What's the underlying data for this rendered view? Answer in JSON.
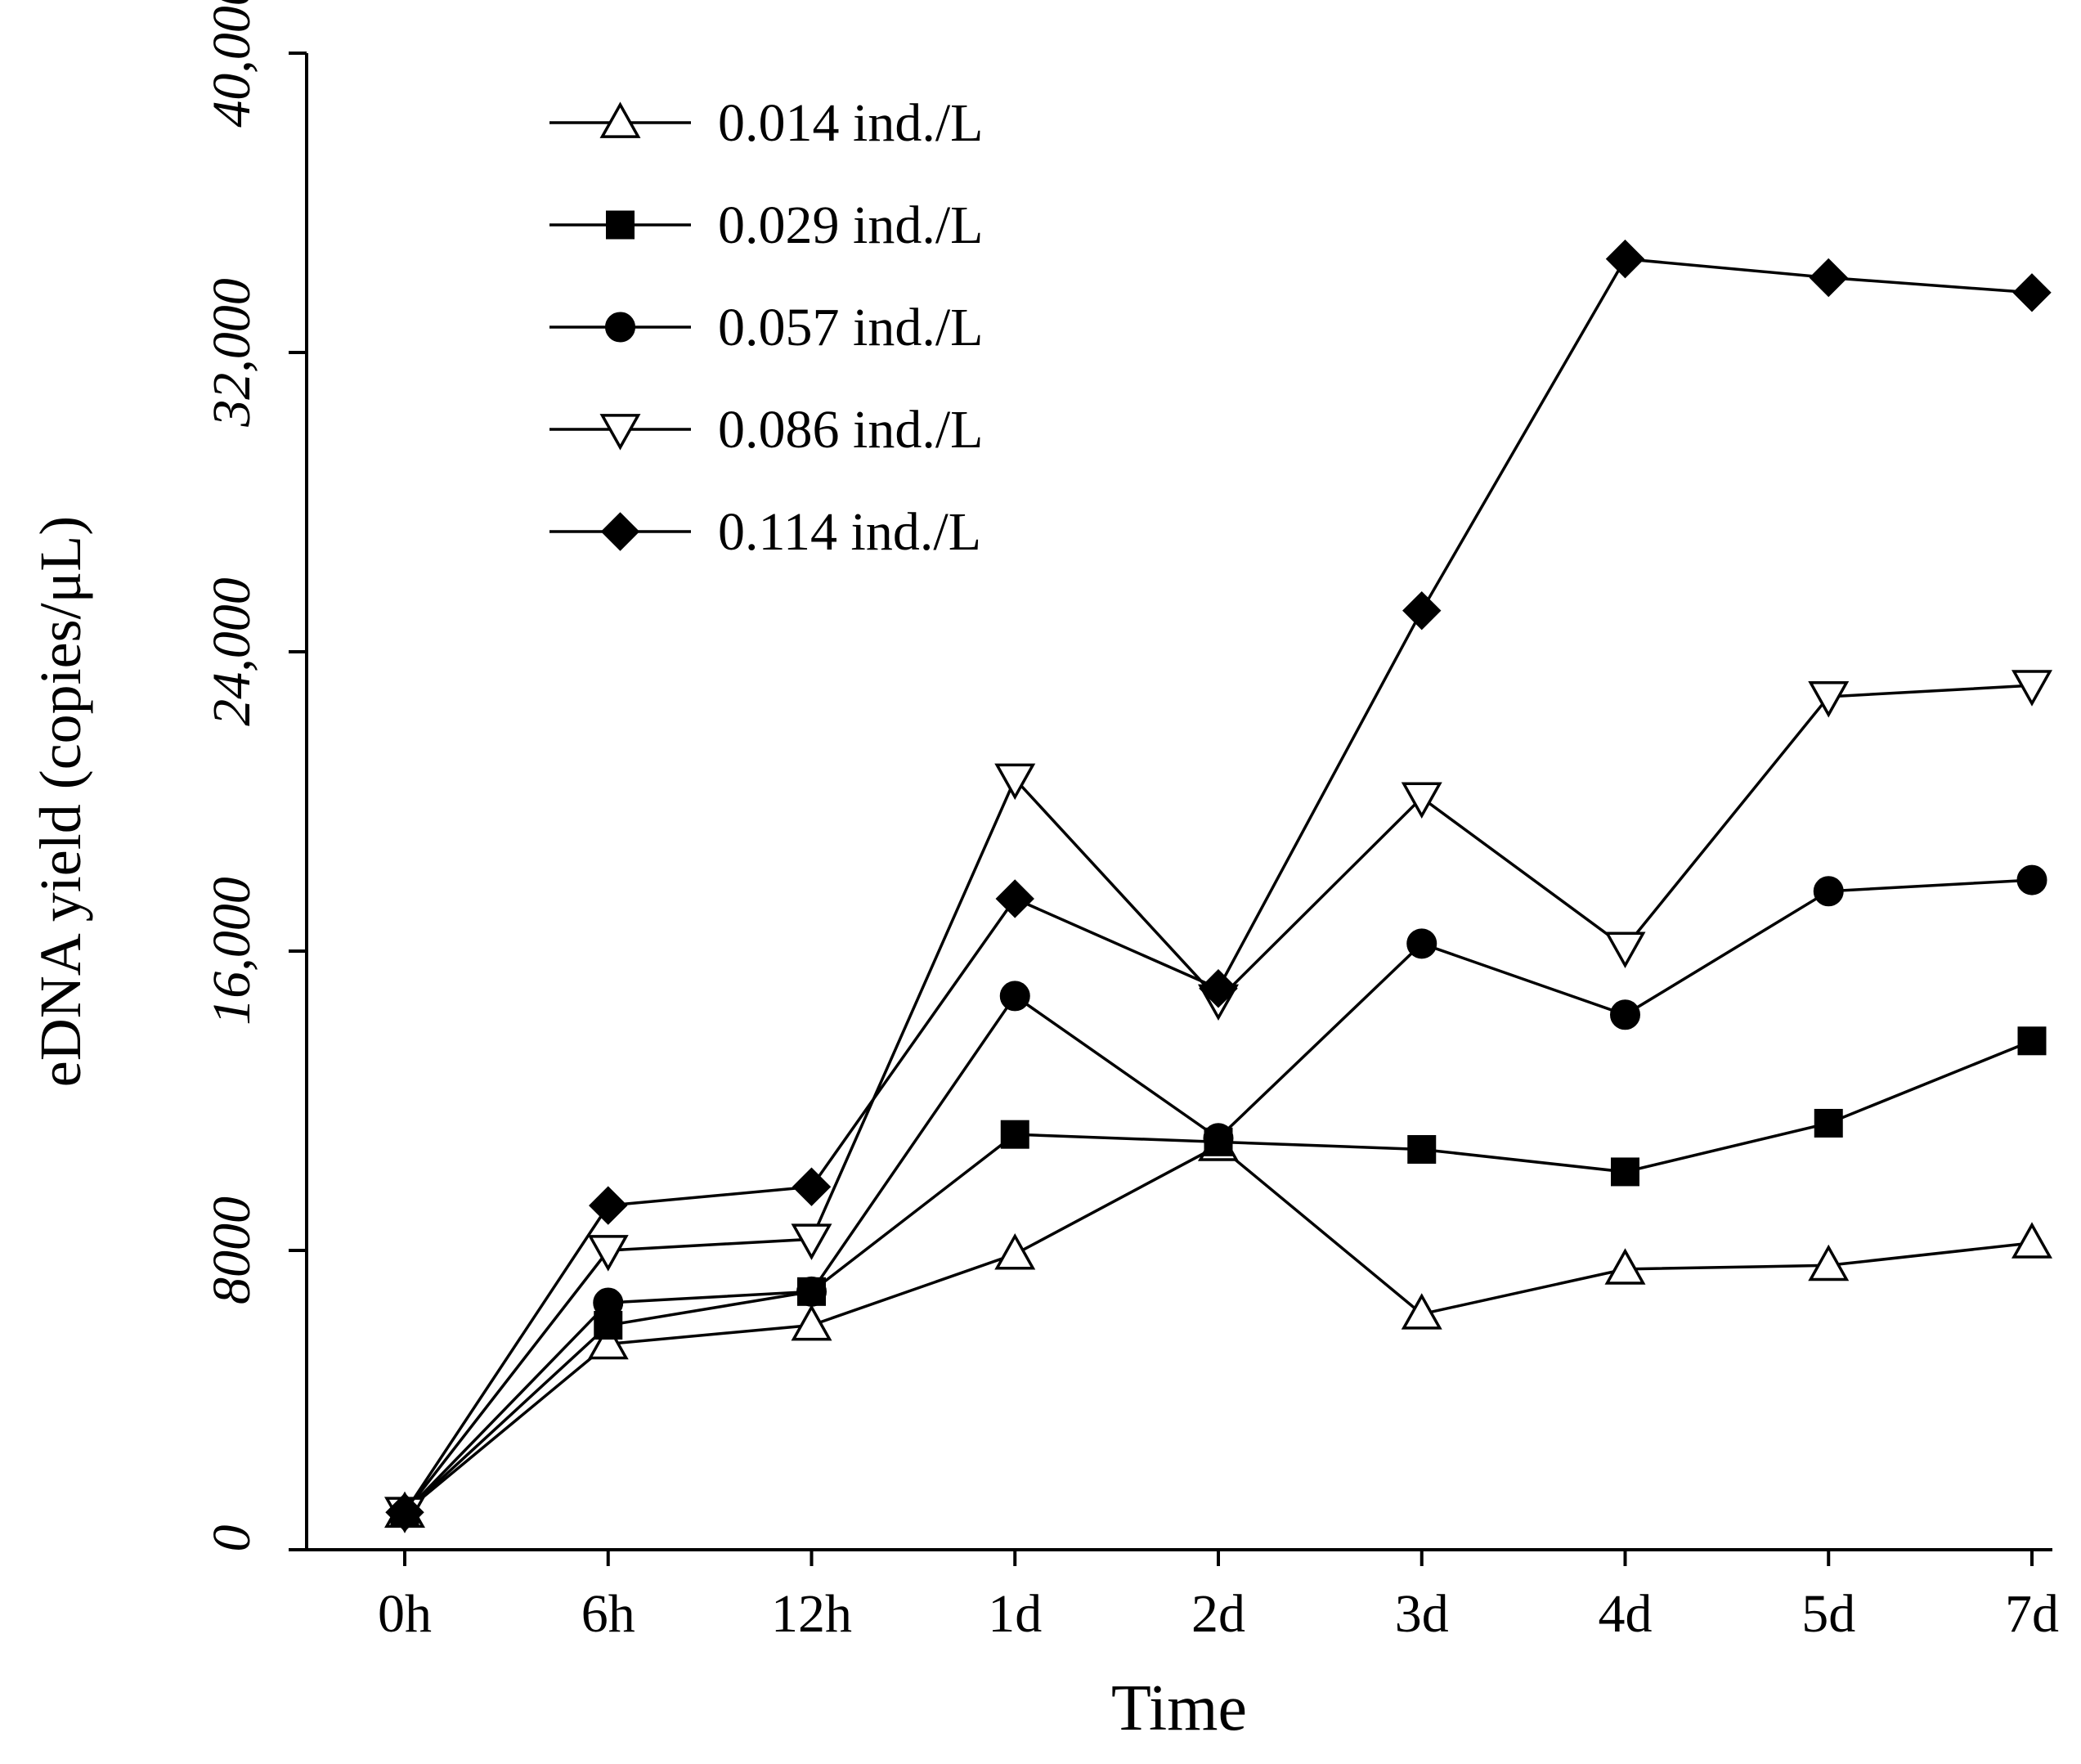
{
  "chart_data": {
    "type": "line",
    "title": "",
    "xlabel": "Time",
    "ylabel": "eDNA yield (copies/μL)",
    "categories": [
      "0h",
      "6h",
      "12h",
      "1d",
      "2d",
      "3d",
      "4d",
      "5d",
      "7d"
    ],
    "ylim": [
      0,
      40000
    ],
    "yticks": [
      0,
      8000,
      16000,
      24000,
      32000,
      40000
    ],
    "ytick_labels": [
      "0",
      "8000",
      "16,000",
      "24,000",
      "32,000",
      "40,000"
    ],
    "grid": false,
    "legend_position": "top-left",
    "series": [
      {
        "name": "0.014 ind./L",
        "marker": "triangle-up-open",
        "values": [
          1000,
          5500,
          6000,
          7900,
          10800,
          6300,
          7500,
          7600,
          8200
        ]
      },
      {
        "name": "0.029 ind./L",
        "marker": "square-filled",
        "values": [
          1000,
          6000,
          6900,
          11100,
          10900,
          10700,
          10100,
          11400,
          13600
        ]
      },
      {
        "name": "0.057 ind./L",
        "marker": "circle-filled",
        "values": [
          1000,
          6600,
          6900,
          14800,
          11000,
          16200,
          14300,
          17600,
          17900
        ]
      },
      {
        "name": "0.086 ind./L",
        "marker": "triangle-down-open",
        "values": [
          1000,
          8000,
          8300,
          20600,
          14700,
          20100,
          16100,
          22800,
          23100
        ]
      },
      {
        "name": "0.114 ind./L",
        "marker": "diamond-filled",
        "values": [
          1000,
          9200,
          9700,
          17400,
          15000,
          25100,
          34500,
          34000,
          33600
        ]
      }
    ]
  }
}
